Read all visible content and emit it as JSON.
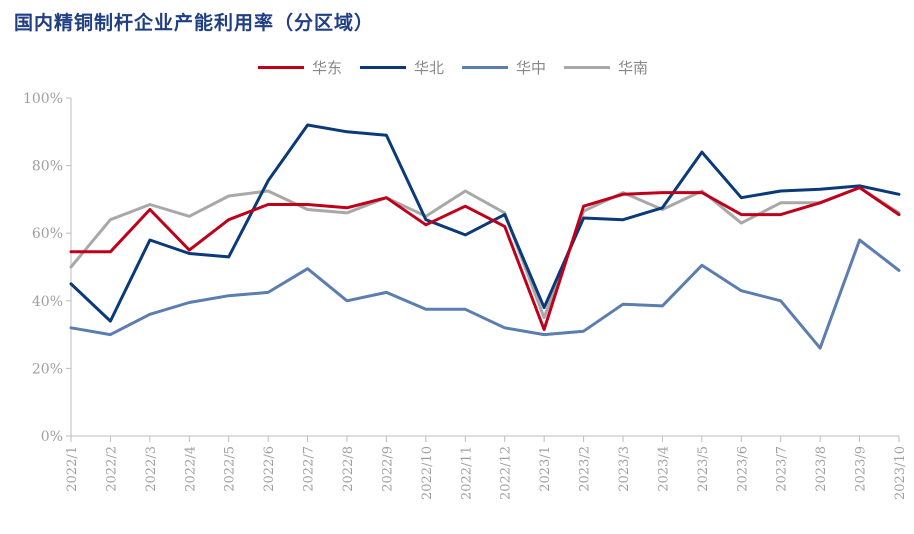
{
  "chart_data": {
    "type": "line",
    "title": "国内精铜制杆企业产能利用率（分区域）",
    "categories": [
      "2022/1",
      "2022/2",
      "2022/3",
      "2022/4",
      "2022/5",
      "2022/6",
      "2022/7",
      "2022/8",
      "2022/9",
      "2022/10",
      "2022/11",
      "2022/12",
      "2023/1",
      "2023/2",
      "2023/3",
      "2023/4",
      "2023/5",
      "2023/6",
      "2023/7",
      "2023/8",
      "2023/9",
      "2023/10"
    ],
    "ylim": [
      0,
      100
    ],
    "yticks": [
      "0%",
      "20%",
      "40%",
      "60%",
      "80%",
      "100%"
    ],
    "legend_position": "top-center",
    "grid": false,
    "series": [
      {
        "name": "华东",
        "color": "#c0001a",
        "values": [
          54.5,
          54.5,
          67,
          55,
          64,
          68.5,
          68.5,
          67.5,
          70.5,
          62.5,
          68,
          62,
          31.5,
          68,
          71.5,
          72,
          72,
          65.5,
          65.5,
          69,
          73.5,
          65.5
        ]
      },
      {
        "name": "华北",
        "color": "#0a3a7a",
        "values": [
          45,
          34,
          58,
          54,
          53,
          75.5,
          92,
          90,
          89,
          64,
          59.5,
          65.5,
          38,
          64.5,
          64,
          67.5,
          84,
          70.5,
          72.5,
          73,
          74,
          71.5
        ]
      },
      {
        "name": "华中",
        "color": "#5b7db0",
        "values": [
          32,
          30,
          36,
          39.5,
          41.5,
          42.5,
          49.5,
          40,
          42.5,
          37.5,
          37.5,
          32,
          30,
          31,
          39,
          38.5,
          50.5,
          43,
          40,
          26,
          58,
          49
        ]
      },
      {
        "name": "华南",
        "color": "#a8a8a8",
        "values": [
          50,
          64,
          68.5,
          65,
          71,
          72.5,
          67,
          66,
          70.5,
          65,
          72.5,
          66,
          35,
          66.5,
          72,
          67,
          72.5,
          63,
          69,
          69,
          73.5,
          66
        ]
      }
    ]
  }
}
